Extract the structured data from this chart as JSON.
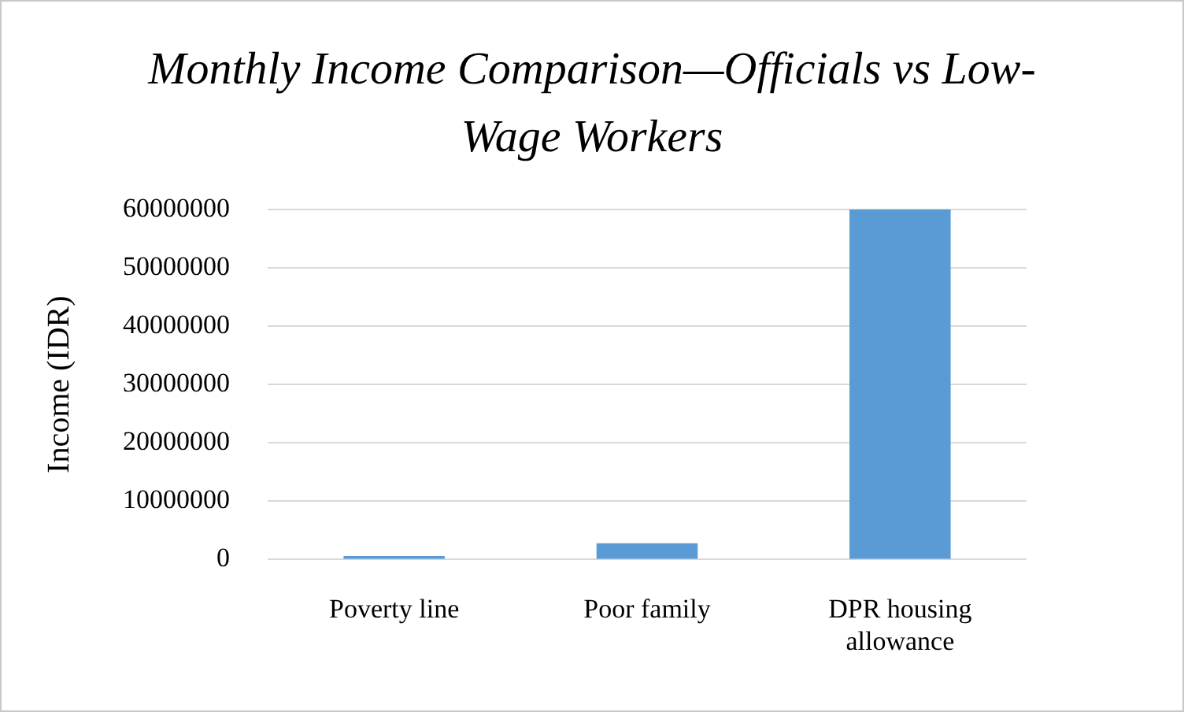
{
  "chart_data": {
    "type": "bar",
    "title": "Monthly Income Comparison—Officials vs Low-Wage Workers",
    "ylabel": "Income (IDR)",
    "categories": [
      "Poverty line",
      "Poor family",
      "DPR housing allowance"
    ],
    "values": [
      600000,
      2800000,
      60000000
    ],
    "color": "#5b9bd5",
    "ylim": [
      0,
      60000000
    ],
    "yticks": [
      0,
      10000000,
      20000000,
      30000000,
      40000000,
      50000000,
      60000000
    ],
    "grid": "y"
  }
}
